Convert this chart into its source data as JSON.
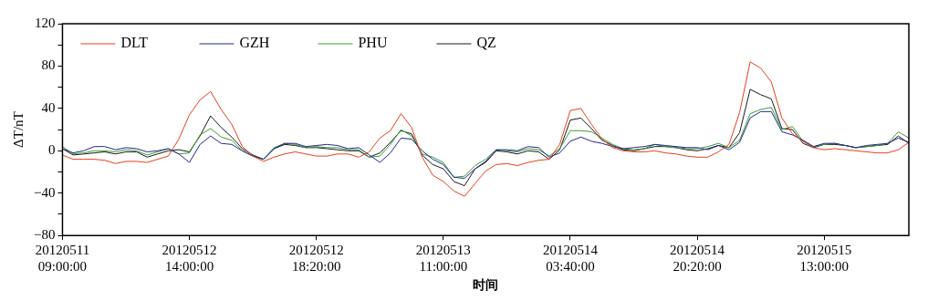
{
  "chart_data": {
    "type": "line",
    "xlabel": "时间",
    "ylabel": "ΔT/nT",
    "categories": [
      "20120511\n09:00:00",
      null,
      null,
      null,
      null,
      null,
      null,
      null,
      null,
      null,
      null,
      null,
      "20120512\n14:00:00",
      null,
      null,
      null,
      null,
      null,
      null,
      null,
      null,
      null,
      null,
      null,
      "20120512\n18:20:00",
      null,
      null,
      null,
      null,
      null,
      null,
      null,
      null,
      null,
      null,
      null,
      "20120513\n11:00:00",
      null,
      null,
      null,
      null,
      null,
      null,
      null,
      null,
      null,
      null,
      null,
      "20120514\n03:40:00",
      null,
      null,
      null,
      null,
      null,
      null,
      null,
      null,
      null,
      null,
      null,
      "20120514\n20:20:00",
      null,
      null,
      null,
      null,
      null,
      null,
      null,
      null,
      null,
      null,
      null,
      "20120515\n13:00:00",
      null,
      null,
      null,
      null,
      null,
      null,
      null,
      null
    ],
    "series": [
      {
        "name": "DLT",
        "color": "#e8401c",
        "values": [
          -4,
          -8,
          -8,
          -8,
          -9,
          -12,
          -10,
          -10,
          -11,
          -8,
          -5,
          11,
          34,
          48,
          56,
          39,
          25,
          4,
          -5,
          -10,
          -6,
          -3,
          -1,
          -3,
          -5,
          -5,
          -3,
          -3,
          -6,
          -1,
          12,
          19,
          35,
          22,
          -6,
          -23,
          -29,
          -38,
          -43,
          -31,
          -19,
          -13,
          -12,
          -14,
          -11,
          -9,
          -8,
          6,
          38,
          40,
          25,
          11,
          3,
          0,
          -1,
          -1,
          0,
          -2,
          -3,
          -5,
          -6,
          -6,
          -1,
          6,
          36,
          84,
          78,
          65,
          31,
          16,
          9,
          3,
          1,
          2,
          1,
          0,
          -1,
          -2,
          -2,
          1,
          8
        ]
      },
      {
        "name": "GZH",
        "color": "#23288c",
        "values": [
          2,
          -2,
          0,
          4,
          4,
          1,
          3,
          2,
          -1,
          0,
          2,
          -3,
          -11,
          6,
          14,
          7,
          6,
          0,
          -5,
          -8,
          2,
          7,
          7,
          4,
          5,
          6,
          5,
          2,
          3,
          -4,
          -11,
          -2,
          12,
          11,
          0,
          -8,
          -13,
          -25,
          -26,
          -17,
          -10,
          1,
          1,
          0,
          4,
          3,
          -6,
          -2,
          9,
          13,
          9,
          7,
          4,
          2,
          3,
          4,
          6,
          5,
          4,
          3,
          3,
          1,
          5,
          1,
          8,
          31,
          37,
          37,
          18,
          15,
          10,
          4,
          7,
          7,
          5,
          3,
          5,
          6,
          7,
          12,
          8
        ]
      },
      {
        "name": "PHU",
        "color": "#3c9c35",
        "values": [
          4,
          -3,
          -2,
          0,
          0,
          -1,
          1,
          0,
          -4,
          -1,
          2,
          -3,
          -2,
          15,
          21,
          13,
          10,
          0,
          -5,
          -8,
          3,
          7,
          6,
          3,
          4,
          3,
          3,
          1,
          1,
          -6,
          -5,
          6,
          20,
          14,
          -3,
          -6,
          -11,
          -25,
          -24,
          -14,
          -8,
          1,
          0,
          -1,
          2,
          1,
          -5,
          2,
          19,
          19,
          18,
          12,
          6,
          2,
          1,
          2,
          6,
          4,
          3,
          2,
          2,
          4,
          7,
          3,
          10,
          35,
          39,
          41,
          20,
          23,
          9,
          4,
          6,
          7,
          5,
          3,
          4,
          5,
          7,
          18,
          12
        ]
      },
      {
        "name": "QZ",
        "color": "#1a1a1a",
        "values": [
          2,
          -4,
          -3,
          -2,
          -1,
          -3,
          -1,
          -1,
          -6,
          -3,
          0,
          1,
          -1,
          14,
          33,
          22,
          13,
          2,
          -4,
          -8,
          2,
          6,
          5,
          3,
          3,
          2,
          1,
          0,
          0,
          -6,
          -2,
          8,
          19,
          16,
          -4,
          -13,
          -17,
          -29,
          -33,
          -17,
          -11,
          0,
          -1,
          -3,
          0,
          -1,
          -8,
          1,
          29,
          31,
          21,
          10,
          5,
          1,
          0,
          2,
          4,
          4,
          3,
          1,
          0,
          2,
          5,
          3,
          17,
          58,
          53,
          49,
          21,
          20,
          7,
          3,
          6,
          6,
          5,
          3,
          4,
          5,
          6,
          14,
          7
        ]
      }
    ],
    "ylim": [
      -80,
      120
    ],
    "yticks": [
      -80,
      {
        "value": -60,
        "label": null
      },
      -40,
      {
        "value": -20,
        "label": null
      },
      0,
      {
        "value": 20,
        "label": null
      },
      40,
      {
        "value": 60,
        "label": null
      },
      80,
      {
        "value": 100,
        "label": null
      },
      120
    ],
    "grid": false,
    "legend": "top left"
  }
}
